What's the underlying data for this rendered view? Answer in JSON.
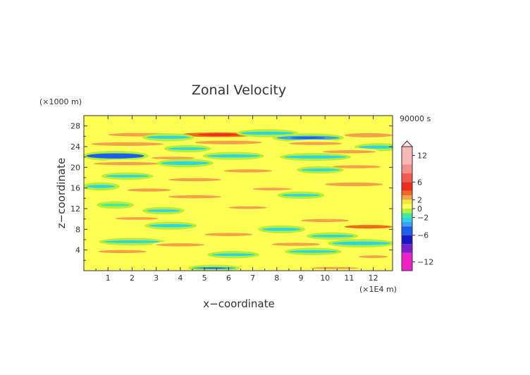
{
  "chart_data": {
    "type": "heatmap",
    "title": "Zonal Velocity",
    "xlabel": "x−coordinate",
    "ylabel": "z−coordinate",
    "x_unit": "(×1E4 m)",
    "y_unit": "(×1000 m)",
    "time_label": "90000 s",
    "xlim": [
      0,
      12.8
    ],
    "ylim": [
      0,
      30
    ],
    "x_ticks": [
      1,
      2,
      3,
      4,
      5,
      6,
      7,
      8,
      9,
      10,
      11,
      12
    ],
    "y_ticks": [
      4,
      8,
      12,
      16,
      20,
      24,
      28
    ],
    "colorbar": {
      "ticks": [
        12,
        6,
        2,
        0,
        -2,
        -6,
        -12
      ],
      "tick_labels": [
        "12",
        "6",
        "2",
        "0",
        "−2",
        "−6",
        "−12"
      ],
      "levels": [
        {
          "from": 10,
          "to": 14,
          "color": "#f9b7b5"
        },
        {
          "from": 8,
          "to": 10,
          "color": "#f58f8c"
        },
        {
          "from": 6,
          "to": 8,
          "color": "#f05a50"
        },
        {
          "from": 4,
          "to": 6,
          "color": "#ee2d20"
        },
        {
          "from": 3,
          "to": 4,
          "color": "#f06a1d"
        },
        {
          "from": 2,
          "to": 3,
          "color": "#f5a04a"
        },
        {
          "from": 1,
          "to": 2,
          "color": "#f5e73a"
        },
        {
          "from": 0,
          "to": 1,
          "color": "#ffff55"
        },
        {
          "from": -1,
          "to": 0,
          "color": "#b4f038"
        },
        {
          "from": -2,
          "to": -1,
          "color": "#45e89c"
        },
        {
          "from": -3,
          "to": -2,
          "color": "#2bd4e8"
        },
        {
          "from": -4,
          "to": -3,
          "color": "#3aa2ee"
        },
        {
          "from": -6,
          "to": -4,
          "color": "#1d5ef0"
        },
        {
          "from": -8,
          "to": -6,
          "color": "#1818c8"
        },
        {
          "from": -10,
          "to": -8,
          "color": "#7a20c8"
        },
        {
          "from": -14,
          "to": -10,
          "color": "#ee20c8"
        }
      ]
    },
    "background_value": 0.5,
    "bands": [
      {
        "xc": 2.5,
        "z": 26.3,
        "len": 3.0,
        "th": 0.7,
        "v": 2.5
      },
      {
        "xc": 5.6,
        "z": 26.3,
        "len": 3.2,
        "th": 0.9,
        "v": 3.2
      },
      {
        "xc": 11.8,
        "z": 26.2,
        "len": 2.0,
        "th": 0.8,
        "v": 2.5
      },
      {
        "xc": 3.5,
        "z": 25.8,
        "len": 1.8,
        "th": 0.6,
        "v": -2.5
      },
      {
        "xc": 7.6,
        "z": 26.6,
        "len": 2.2,
        "th": 0.6,
        "v": -2.5
      },
      {
        "xc": 9.3,
        "z": 25.7,
        "len": 2.6,
        "th": 0.8,
        "v": -3.6
      },
      {
        "xc": 1.8,
        "z": 24.5,
        "len": 3.0,
        "th": 0.7,
        "v": 2.3
      },
      {
        "xc": 6.0,
        "z": 24.8,
        "len": 2.8,
        "th": 0.7,
        "v": 2.5
      },
      {
        "xc": 9.6,
        "z": 24.6,
        "len": 2.2,
        "th": 0.6,
        "v": 2.3
      },
      {
        "xc": 12.2,
        "z": 23.9,
        "len": 1.6,
        "th": 0.6,
        "v": -3.0
      },
      {
        "xc": 4.3,
        "z": 23.6,
        "len": 1.6,
        "th": 0.5,
        "v": -2.5
      },
      {
        "xc": 11.0,
        "z": 23.0,
        "len": 2.2,
        "th": 0.6,
        "v": 2.5
      },
      {
        "xc": 1.3,
        "z": 22.2,
        "len": 2.4,
        "th": 1.0,
        "v": -4.3
      },
      {
        "xc": 3.7,
        "z": 21.8,
        "len": 1.8,
        "th": 0.5,
        "v": 2.3
      },
      {
        "xc": 6.2,
        "z": 22.2,
        "len": 2.2,
        "th": 0.6,
        "v": -2.5
      },
      {
        "xc": 9.6,
        "z": 22.0,
        "len": 2.6,
        "th": 0.6,
        "v": -2.5
      },
      {
        "xc": 1.8,
        "z": 20.7,
        "len": 2.8,
        "th": 0.6,
        "v": 2.6
      },
      {
        "xc": 4.2,
        "z": 20.8,
        "len": 2.0,
        "th": 0.7,
        "v": -3.0
      },
      {
        "xc": 11.3,
        "z": 20.1,
        "len": 2.0,
        "th": 0.6,
        "v": 2.4
      },
      {
        "xc": 6.8,
        "z": 19.3,
        "len": 2.0,
        "th": 0.6,
        "v": 2.8
      },
      {
        "xc": 9.8,
        "z": 19.5,
        "len": 1.6,
        "th": 0.5,
        "v": -2.5
      },
      {
        "xc": 1.8,
        "z": 18.3,
        "len": 1.8,
        "th": 0.5,
        "v": -2.5
      },
      {
        "xc": 4.6,
        "z": 17.6,
        "len": 2.2,
        "th": 0.6,
        "v": 2.3
      },
      {
        "xc": 11.2,
        "z": 16.7,
        "len": 2.4,
        "th": 0.7,
        "v": 2.8
      },
      {
        "xc": 0.7,
        "z": 16.3,
        "len": 1.2,
        "th": 0.6,
        "v": -2.5
      },
      {
        "xc": 2.7,
        "z": 15.6,
        "len": 1.8,
        "th": 0.6,
        "v": 2.5
      },
      {
        "xc": 7.8,
        "z": 15.8,
        "len": 1.6,
        "th": 0.5,
        "v": 2.3
      },
      {
        "xc": 9.0,
        "z": 14.6,
        "len": 1.6,
        "th": 0.5,
        "v": -2.5
      },
      {
        "xc": 4.6,
        "z": 14.3,
        "len": 2.2,
        "th": 0.6,
        "v": 2.3
      },
      {
        "xc": 1.3,
        "z": 12.7,
        "len": 1.2,
        "th": 0.5,
        "v": -1.5
      },
      {
        "xc": 6.8,
        "z": 12.2,
        "len": 1.6,
        "th": 0.5,
        "v": 2.3
      },
      {
        "xc": 3.3,
        "z": 11.6,
        "len": 1.4,
        "th": 0.5,
        "v": -2.5
      },
      {
        "xc": 2.2,
        "z": 10.1,
        "len": 1.8,
        "th": 0.5,
        "v": 2.3
      },
      {
        "xc": 10.0,
        "z": 9.7,
        "len": 2.0,
        "th": 0.6,
        "v": 2.4
      },
      {
        "xc": 3.6,
        "z": 8.7,
        "len": 1.8,
        "th": 0.6,
        "v": -2.5
      },
      {
        "xc": 11.8,
        "z": 8.5,
        "len": 2.0,
        "th": 0.7,
        "v": 3.0
      },
      {
        "xc": 8.2,
        "z": 8.0,
        "len": 1.6,
        "th": 0.6,
        "v": -2.5
      },
      {
        "xc": 6.0,
        "z": 7.0,
        "len": 2.0,
        "th": 0.6,
        "v": 2.6
      },
      {
        "xc": 10.3,
        "z": 6.7,
        "len": 1.8,
        "th": 0.5,
        "v": -2.5
      },
      {
        "xc": 2.0,
        "z": 5.6,
        "len": 2.4,
        "th": 0.5,
        "v": -2.5
      },
      {
        "xc": 4.0,
        "z": 5.0,
        "len": 2.0,
        "th": 0.6,
        "v": 2.8
      },
      {
        "xc": 11.5,
        "z": 5.3,
        "len": 2.4,
        "th": 0.7,
        "v": -2.5
      },
      {
        "xc": 8.8,
        "z": 5.1,
        "len": 2.0,
        "th": 0.6,
        "v": 2.6
      },
      {
        "xc": 1.6,
        "z": 3.7,
        "len": 2.0,
        "th": 0.6,
        "v": 2.6
      },
      {
        "xc": 9.5,
        "z": 3.7,
        "len": 2.0,
        "th": 0.5,
        "v": -2.5
      },
      {
        "xc": 6.2,
        "z": 3.1,
        "len": 1.8,
        "th": 0.5,
        "v": -2.5
      },
      {
        "xc": 12.0,
        "z": 2.7,
        "len": 1.2,
        "th": 0.5,
        "v": 2.3
      },
      {
        "xc": 5.4,
        "z": 0.5,
        "len": 1.8,
        "th": 0.4,
        "v": -4.0
      },
      {
        "xc": 10.4,
        "z": 0.5,
        "len": 2.0,
        "th": 0.4,
        "v": 2.3
      }
    ]
  }
}
